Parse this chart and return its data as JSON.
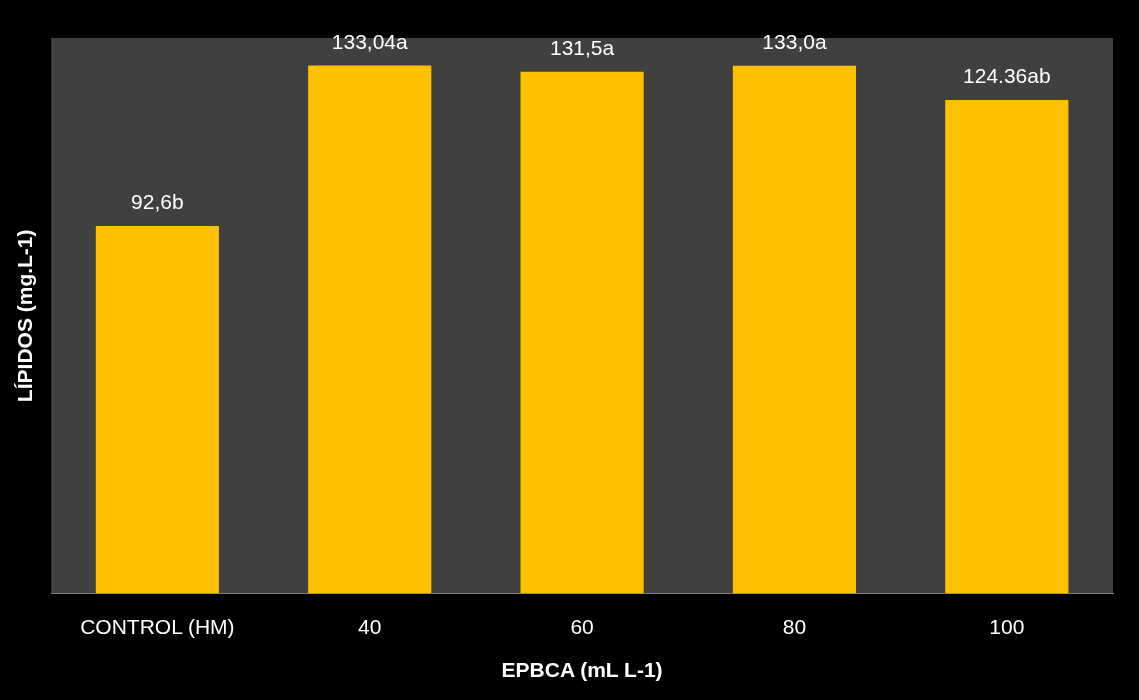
{
  "chart_data": {
    "type": "bar",
    "xlabel": "EPBCA (mL L-1)",
    "ylabel": "LÍPIDOS (mg.L-1)",
    "categories": [
      "CONTROL (HM)",
      "40",
      "60",
      "80",
      "100"
    ],
    "values": [
      92.6,
      133.04,
      131.5,
      133.0,
      124.36
    ],
    "value_labels": [
      "92,6b",
      "133,04a",
      "131,5a",
      "133,0a",
      "124.36ab"
    ],
    "color": "#ffc000",
    "grid": false,
    "tick_labels": "x",
    "legend": false
  }
}
